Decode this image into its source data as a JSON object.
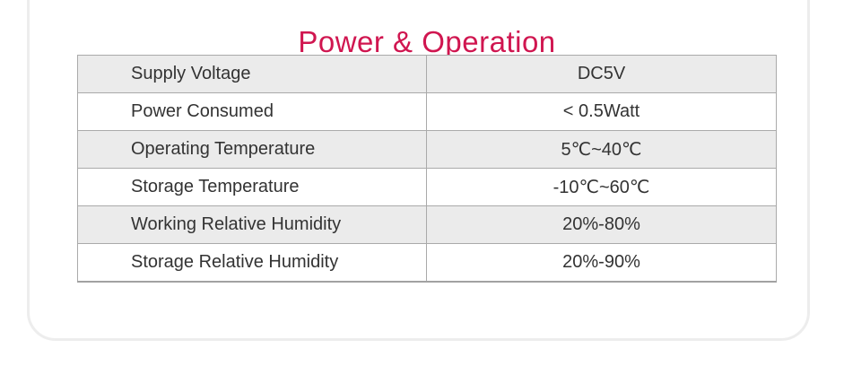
{
  "page": {
    "title": "Power & Operation",
    "title_color": "#d01650"
  },
  "spec_table": {
    "rows": [
      {
        "label": "Supply Voltage",
        "value": "DC5V"
      },
      {
        "label": "Power Consumed",
        "value": "< 0.5Watt"
      },
      {
        "label": "Operating Temperature",
        "value": "5℃~40℃"
      },
      {
        "label": "Storage Temperature",
        "value": "-10℃~60℃"
      },
      {
        "label": "Working Relative Humidity",
        "value": "20%-80%"
      },
      {
        "label": "Storage Relative Humidity",
        "value": "20%-90%"
      }
    ],
    "colors": {
      "striped_row_bg": "#ebebeb",
      "plain_row_bg": "#ffffff",
      "border": "#aaaaaa",
      "text": "#333333"
    }
  }
}
